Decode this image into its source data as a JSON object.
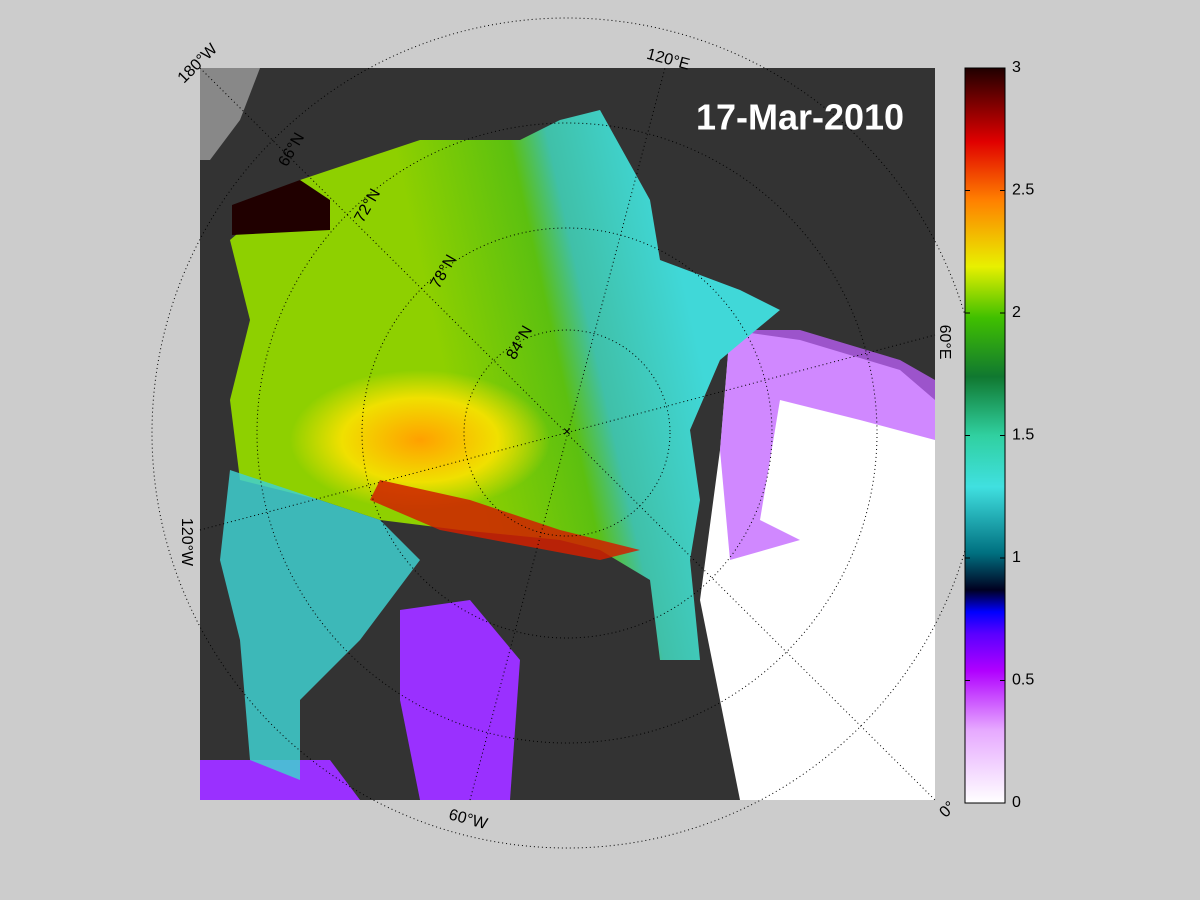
{
  "map": {
    "title": "17-Mar-2010",
    "longitude_labels": [
      "180°W",
      "120°E",
      "60°E",
      "0°",
      "60°W",
      "120°W"
    ],
    "latitude_labels": [
      "66°N",
      "72°N",
      "78°N",
      "84°N"
    ]
  },
  "colorbar": {
    "lim": [
      0,
      3
    ],
    "ticks": [
      0,
      0.5,
      1,
      1.5,
      2,
      2.5,
      3
    ]
  }
}
